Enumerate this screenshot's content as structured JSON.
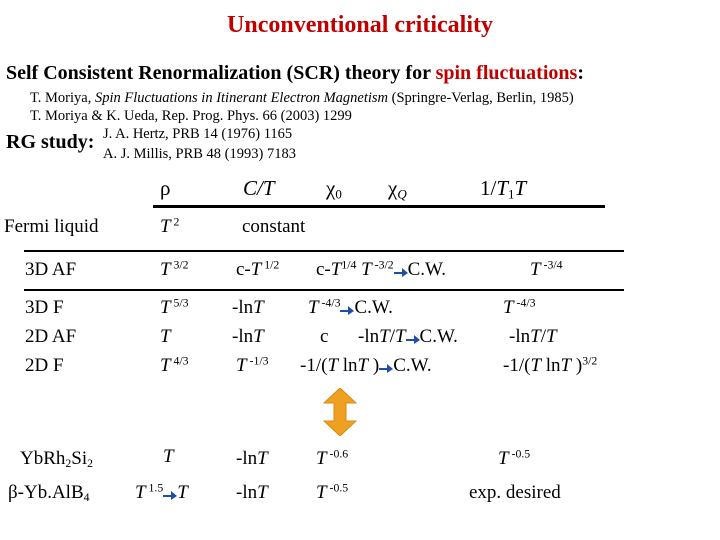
{
  "title": "Unconventional criticality",
  "scr_heading": {
    "prefix": "Self Consistent Renormalization (SCR) theory for ",
    "highlight": "spin fluctuations",
    "suffix": ":"
  },
  "refs": {
    "ref1_prefix": "T. Moriya, ",
    "ref1_book": "Spin Fluctuations in Itinerant Electron Magnetism",
    "ref1_suffix": " (Springre-Verlag, Berlin, 1985)",
    "ref2": "T. Moriya & K. Ueda, Rep. Prog. Phys. 66 (2003) 1299",
    "rg_label": "RG study:",
    "rg_ref1": "J. A. Hertz, PRB 14 (1976) 1165",
    "rg_ref2": "A. J. Millis, PRB 48 (1993) 7183"
  },
  "columns": {
    "rho": "ρ",
    "c_over_t": "C/T",
    "chi0_base": "χ",
    "chi0_sub": "0",
    "chiq_base": "χ",
    "chiq_sub": "Q",
    "inv_t1t_pre": "1/",
    "inv_t1t_t": "T",
    "inv_t1t_sub": "1",
    "inv_t1t_post": "T"
  },
  "rows": {
    "fermi_label": "Fermi liquid",
    "fermi_rho_base": "T",
    "fermi_rho_exp": " 2",
    "fermi_const": "constant",
    "af3d_label": "3D AF",
    "af3d_rho_base": "T",
    "af3d_rho_exp": " 3/2",
    "af3d_c_pre": "c-",
    "af3d_c_t": "T",
    "af3d_c_exp": " 1/2",
    "af3d_chi_pre": "c-",
    "af3d_chi_t": "T",
    "af3d_chi_exp": "1/4",
    "af3d_chiq_t": "T",
    "af3d_chiq_exp": " -3/2",
    "af3d_chiq_cw": "C.W.",
    "af3d_t1_t": "T",
    "af3d_t1_exp": " -3/4",
    "f3d_label": "3D F",
    "f3d_rho_base": "T",
    "f3d_rho_exp": " 5/3",
    "f3d_c_pre": "-ln",
    "f3d_c_t": "T",
    "f3d_chi_t": "T",
    "f3d_chi_exp": " -4/3",
    "f3d_chi_cw": "C.W.",
    "f3d_t1_t": "T",
    "f3d_t1_exp": " -4/3",
    "af2d_label": "2D AF",
    "af2d_rho_base": "T",
    "af2d_c_pre": "-ln",
    "af2d_c_t": "T",
    "af2d_chi0": "c",
    "af2d_chiq_pre": "-ln",
    "af2d_chiq_t": "T",
    "af2d_chiq_slash": "/",
    "af2d_chiq_t2": "T",
    "af2d_chiq_cw": "C.W.",
    "af2d_t1_pre": "-ln",
    "af2d_t1_t": "T",
    "af2d_t1_slash": "/",
    "af2d_t1_t2": "T",
    "f2d_label": "2D F",
    "f2d_rho_base": "T",
    "f2d_rho_exp": " 4/3",
    "f2d_c_t": "T",
    "f2d_c_exp": " -1/3",
    "f2d_chi_pre": "-1/(",
    "f2d_chi_t": "T",
    "f2d_chi_mid": " ln",
    "f2d_chi_t2": "T",
    "f2d_chi_post": " )",
    "f2d_chi_cw": "C.W.",
    "f2d_t1_pre": "-1/(",
    "f2d_t1_t": "T",
    "f2d_t1_mid": " ln",
    "f2d_t1_t2": "T",
    "f2d_t1_post": " )",
    "f2d_t1_exp": "3/2"
  },
  "experiments": {
    "ybrh_label_pre": "YbRh",
    "ybrh_sub1": "2",
    "ybrh_label_mid": "Si",
    "ybrh_sub2": "2",
    "ybrh_rho": "T",
    "ybrh_c_pre": "-ln",
    "ybrh_c_t": "T",
    "ybrh_chi_t": "T",
    "ybrh_chi_exp": " -0.6",
    "ybrh_t1_t": "T",
    "ybrh_t1_exp": " -0.5",
    "ybalb_label": "β-Yb.AlB",
    "ybalb_sub": "4",
    "ybalb_rho_t": "T",
    "ybalb_rho_exp": " 1.5",
    "ybalb_rho_t2": "T",
    "ybalb_c_pre": "-ln",
    "ybalb_c_t": "T",
    "ybalb_chi_t": "T",
    "ybalb_chi_exp": " -0.5",
    "ybalb_t1": "exp. desired"
  },
  "colors": {
    "title": "#c00000",
    "highlight": "#c00000",
    "arrow_blue": "#1f4ea8",
    "double_arrow": "#f0a020"
  }
}
